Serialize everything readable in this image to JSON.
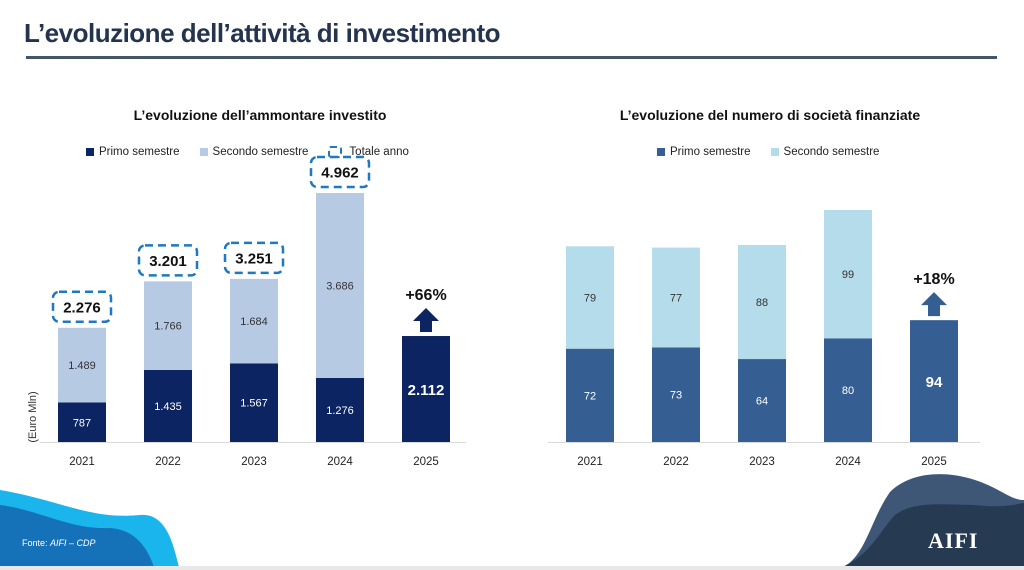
{
  "header": {
    "title": "L’evoluzione dell’attività di investimento"
  },
  "colors": {
    "title": "#24344e",
    "left_primo": "#0c2461",
    "left_secondo": "#b7cae4",
    "dash_box": "#1f78c1",
    "right_primo": "#355f92",
    "right_secondo": "#b5dcea",
    "wave_light": "#19b5ec",
    "wave_dark": "#1572b8",
    "wave_navy_light": "#3e5777",
    "wave_navy_dark": "#263a52"
  },
  "chart_data": [
    {
      "type": "bar",
      "stacked": true,
      "title": "L’evoluzione dell’ammontare investito",
      "ylabel": "(Euro Mln)",
      "xlabel": "",
      "categories": [
        "2021",
        "2022",
        "2023",
        "2024",
        "2025"
      ],
      "series": [
        {
          "name": "Primo semestre",
          "values": [
            787,
            1435,
            1567,
            1276,
            2112
          ],
          "labels": [
            "787",
            "1.435",
            "1.567",
            "1.276",
            "2.112"
          ]
        },
        {
          "name": "Secondo semestre",
          "values": [
            1489,
            1766,
            1684,
            3686,
            null
          ],
          "labels": [
            "1.489",
            "1.766",
            "1.684",
            "3.686",
            ""
          ]
        }
      ],
      "totals": {
        "name": "Totale anno",
        "values": [
          2276,
          3201,
          3251,
          4962,
          null
        ],
        "labels": [
          "2.276",
          "3.201",
          "3.251",
          "4.962",
          ""
        ]
      },
      "legend": [
        "Primo semestre",
        "Secondo semestre",
        "Totale anno"
      ],
      "legend_position": "top",
      "annotation": {
        "category": "2025",
        "text": "+66%",
        "icon": "up-arrow-icon"
      },
      "ylim": [
        0,
        5500
      ],
      "grid": false
    },
    {
      "type": "bar",
      "stacked": true,
      "title": "L’evoluzione del numero di società finanziate",
      "xlabel": "",
      "ylabel": "",
      "categories": [
        "2021",
        "2022",
        "2023",
        "2024",
        "2025"
      ],
      "series": [
        {
          "name": "Primo semestre",
          "values": [
            72,
            73,
            64,
            80,
            94
          ],
          "labels": [
            "72",
            "73",
            "64",
            "80",
            "94"
          ]
        },
        {
          "name": "Secondo semestre",
          "values": [
            79,
            77,
            88,
            99,
            null
          ],
          "labels": [
            "79",
            "77",
            "88",
            "99",
            ""
          ]
        }
      ],
      "legend": [
        "Primo semestre",
        "Secondo semestre"
      ],
      "legend_position": "top",
      "annotation": {
        "category": "2025",
        "text": "+18%",
        "icon": "up-arrow-icon"
      },
      "ylim": [
        0,
        195
      ],
      "grid": false
    }
  ],
  "footer": {
    "source_label": "Fonte: ",
    "source_value": "AIFI – CDP",
    "logo": "AIFI"
  }
}
